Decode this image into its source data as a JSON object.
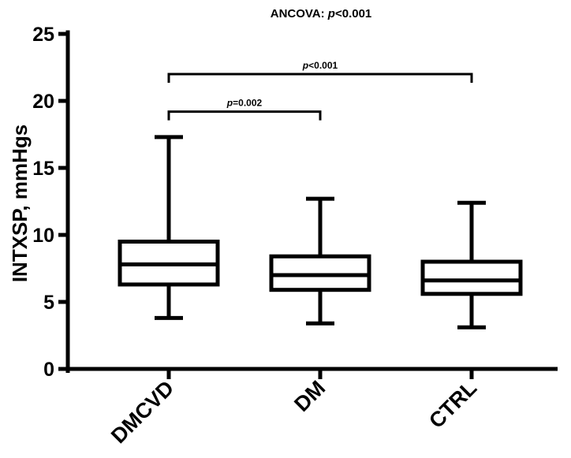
{
  "chart_data": {
    "type": "box",
    "title_prefix": "ANCOVA: ",
    "title_p": "p",
    "title_suffix": "<0.001",
    "ylabel": "INTXSP, mmHgs",
    "ylim": [
      0,
      25
    ],
    "yticks": [
      0,
      5,
      10,
      15,
      20,
      25
    ],
    "ytick_labels": [
      "0",
      "5",
      "10",
      "15",
      "20",
      "25"
    ],
    "categories": [
      "DMCVD",
      "DM",
      "CTRL"
    ],
    "boxes": [
      {
        "name": "DMCVD",
        "min": 3.8,
        "q1": 6.3,
        "median": 7.8,
        "q3": 9.5,
        "max": 17.3
      },
      {
        "name": "DM",
        "min": 3.4,
        "q1": 5.9,
        "median": 7.0,
        "q3": 8.4,
        "max": 12.7
      },
      {
        "name": "CTRL",
        "min": 3.1,
        "q1": 5.6,
        "median": 6.6,
        "q3": 8.0,
        "max": 12.4
      }
    ],
    "annotations": [
      {
        "from": 0,
        "to": 1,
        "level": 19.2,
        "p": "p",
        "text": "=0.002"
      },
      {
        "from": 0,
        "to": 2,
        "level": 22.0,
        "p": "p",
        "text": "<0.001"
      }
    ]
  }
}
